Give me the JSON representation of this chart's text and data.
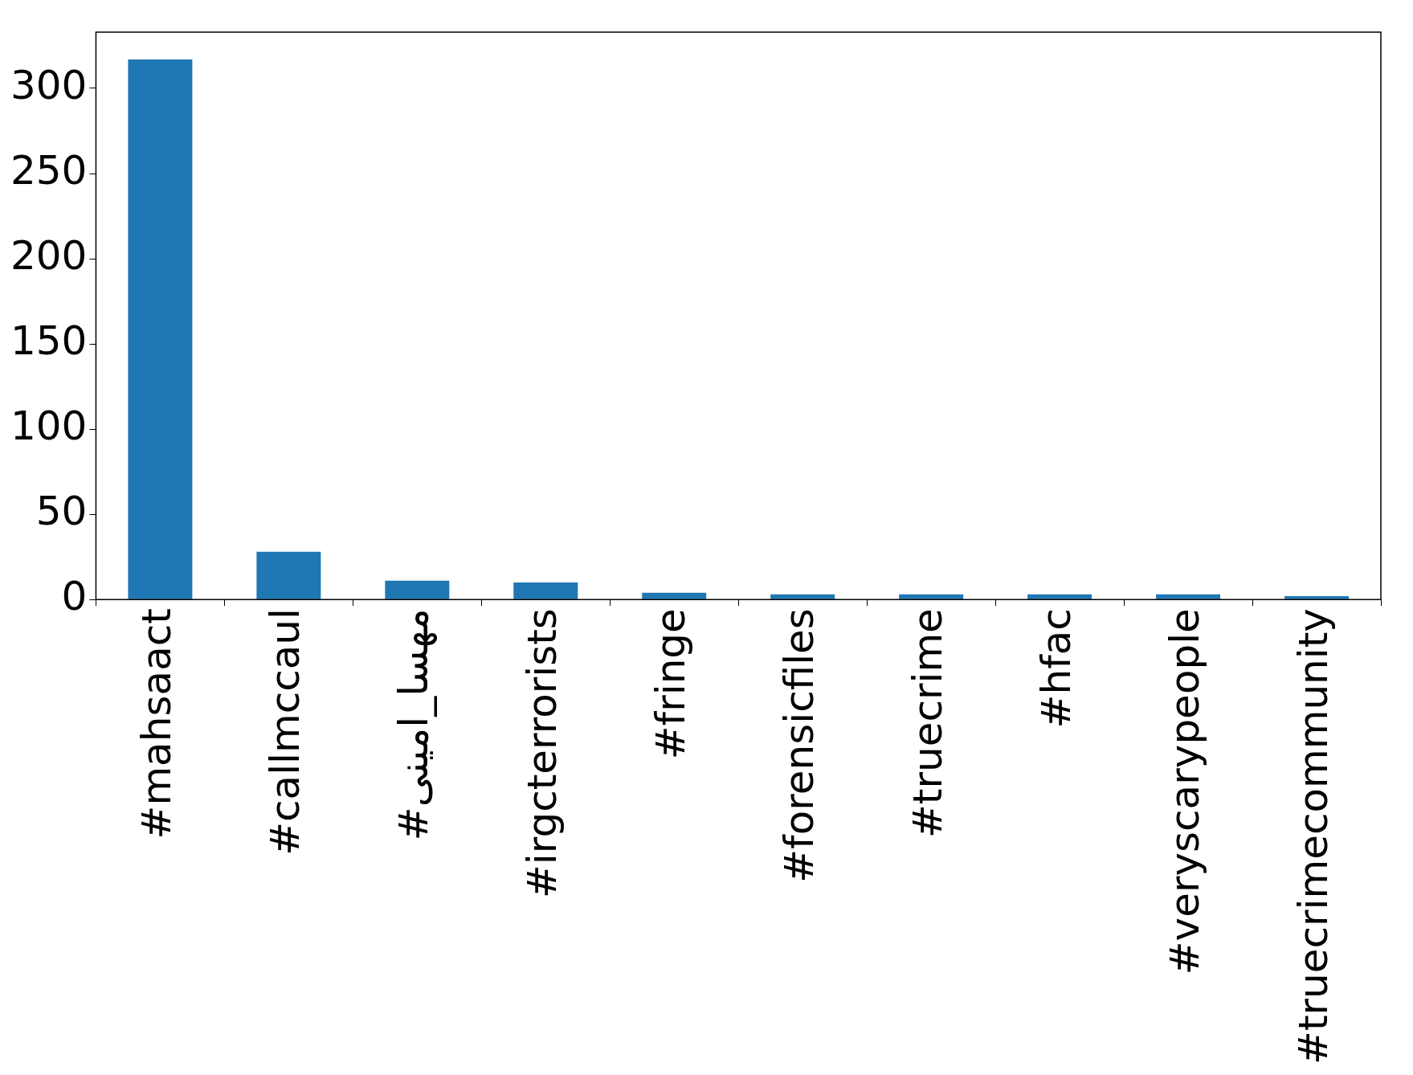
{
  "chart_data": {
    "type": "bar",
    "categories": [
      "#mahsaact",
      "#callmccaul",
      "#مهسا_امینی",
      "#irgcterrorists",
      "#fringe",
      "#forensicfiles",
      "#truecrime",
      "#hfac",
      "#veryscarypeople",
      "#truecrimecommunity"
    ],
    "values": [
      317,
      28,
      11,
      10,
      4,
      3,
      3,
      3,
      3,
      2
    ],
    "color": "#1f77b4",
    "ylim": [
      0,
      333
    ],
    "yticks": [
      0,
      50,
      100,
      150,
      200,
      250,
      300
    ],
    "grid": false,
    "legend": false
  }
}
